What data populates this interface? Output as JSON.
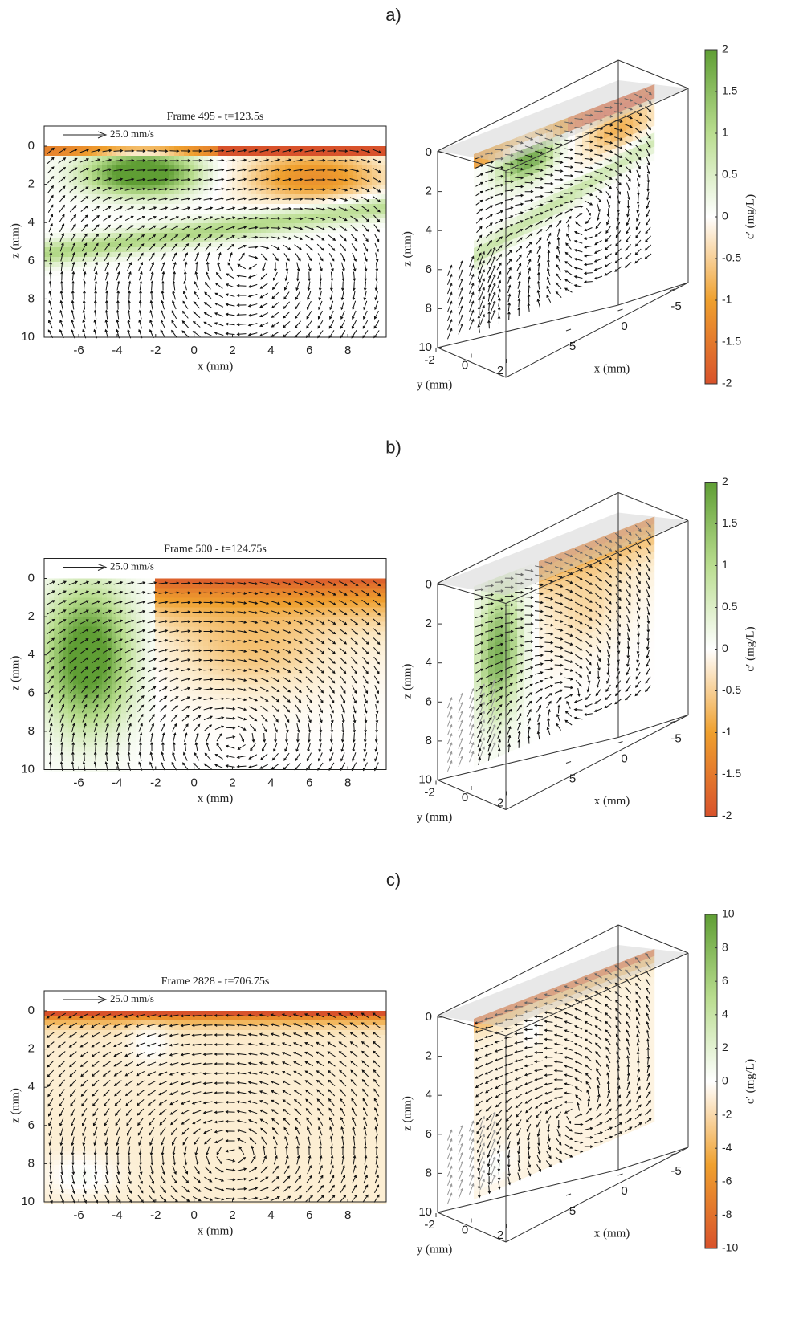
{
  "panels": [
    {
      "label": "a)",
      "title": "Frame 495 - t=123.5s",
      "scale_label": "25.0 mm/s",
      "xlabel": "x (mm)",
      "zlabel": "z (mm)",
      "xlim": [
        -7.8,
        10
      ],
      "zlim": [
        0,
        10
      ],
      "xticks": [
        -6,
        -4,
        -2,
        0,
        2,
        4,
        6,
        8
      ],
      "zticks": [
        0,
        2,
        4,
        6,
        8,
        10
      ],
      "view3d": {
        "xlabel": "x (mm)",
        "ylabel": "y (mm)",
        "zlabel": "z (mm)",
        "zticks": [
          0,
          2,
          4,
          6,
          8,
          10
        ],
        "xticks": [
          5,
          0,
          -5
        ],
        "yticks": [
          -2,
          0,
          2
        ]
      },
      "colorbar": {
        "label": "c′ (mg/L)",
        "lim": [
          -2,
          2
        ],
        "ticks": [
          -2,
          -1.5,
          -1,
          -0.5,
          0,
          0.5,
          1,
          1.5,
          2
        ]
      }
    },
    {
      "label": "b)",
      "title": "Frame 500 - t=124.75s",
      "scale_label": "25.0 mm/s",
      "xlabel": "x (mm)",
      "zlabel": "z (mm)",
      "xlim": [
        -7.8,
        10
      ],
      "zlim": [
        0,
        10
      ],
      "xticks": [
        -6,
        -4,
        -2,
        0,
        2,
        4,
        6,
        8
      ],
      "zticks": [
        0,
        2,
        4,
        6,
        8,
        10
      ],
      "view3d": {
        "xlabel": "x (mm)",
        "ylabel": "y (mm)",
        "zlabel": "z (mm)",
        "zticks": [
          0,
          2,
          4,
          6,
          8,
          10
        ],
        "xticks": [
          5,
          0,
          -5
        ],
        "yticks": [
          -2,
          0,
          2
        ]
      },
      "colorbar": {
        "label": "c′ (mg/L)",
        "lim": [
          -2,
          2
        ],
        "ticks": [
          -2,
          -1.5,
          -1,
          -0.5,
          0,
          0.5,
          1,
          1.5,
          2
        ]
      }
    },
    {
      "label": "c)",
      "title": "Frame 2828 - t=706.75s",
      "scale_label": "25.0 mm/s",
      "xlabel": "x (mm)",
      "zlabel": "z (mm)",
      "xlim": [
        -7.8,
        10
      ],
      "zlim": [
        0,
        10
      ],
      "xticks": [
        -6,
        -4,
        -2,
        0,
        2,
        4,
        6,
        8
      ],
      "zticks": [
        0,
        2,
        4,
        6,
        8,
        10
      ],
      "view3d": {
        "xlabel": "x (mm)",
        "ylabel": "y (mm)",
        "zlabel": "z (mm)",
        "zticks": [
          0,
          2,
          4,
          6,
          8,
          10
        ],
        "xticks": [
          5,
          0,
          -5
        ],
        "yticks": [
          -2,
          0,
          2
        ]
      },
      "colorbar": {
        "label": "c′ (mg/L)",
        "lim": [
          -10,
          10
        ],
        "ticks": [
          -10,
          -8,
          -6,
          -4,
          -2,
          0,
          2,
          4,
          6,
          8,
          10
        ]
      }
    }
  ]
}
